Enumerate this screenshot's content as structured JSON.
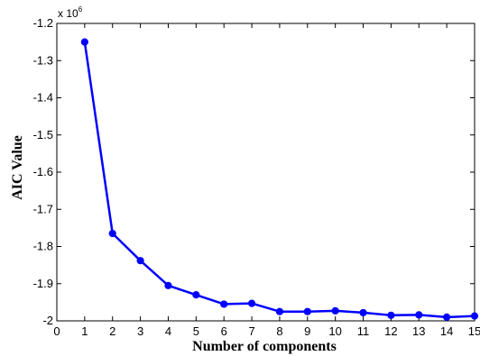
{
  "chart_data": {
    "type": "line",
    "title": "",
    "xlabel": "Number of components",
    "ylabel": "AIC Value",
    "y_multiplier": {
      "base": "x 10",
      "exponent": "6"
    },
    "xlim": [
      0,
      15
    ],
    "ylim": [
      -2.0,
      -1.2
    ],
    "x_ticks": [
      "0",
      "1",
      "2",
      "3",
      "4",
      "5",
      "6",
      "7",
      "8",
      "9",
      "10",
      "11",
      "12",
      "13",
      "14",
      "15"
    ],
    "y_ticks": [
      "-1.2",
      "-1.3",
      "-1.4",
      "-1.5",
      "-1.6",
      "-1.7",
      "-1.8",
      "-1.9",
      "-2"
    ],
    "y_tick_values": [
      -1.2,
      -1.3,
      -1.4,
      -1.5,
      -1.6,
      -1.7,
      -1.8,
      -1.9,
      -2.0
    ],
    "grid": false,
    "series": [
      {
        "color": "#0000ff",
        "x": [
          1,
          2,
          3,
          4,
          5,
          6,
          7,
          8,
          9,
          10,
          11,
          12,
          13,
          14,
          15
        ],
        "y": [
          -1.25,
          -1.765,
          -1.838,
          -1.905,
          -1.93,
          -1.955,
          -1.953,
          -1.975,
          -1.975,
          -1.973,
          -1.978,
          -1.985,
          -1.984,
          -1.99,
          -1.987
        ]
      }
    ]
  }
}
